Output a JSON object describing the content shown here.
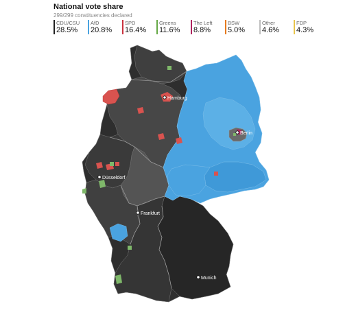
{
  "header": {
    "title": "National vote share",
    "subtitle": "299/299 constituencies declared"
  },
  "legend": [
    {
      "name": "CDU/CSU",
      "value": "28.5%",
      "color": "#1f1f1f"
    },
    {
      "name": "AfD",
      "value": "20.8%",
      "color": "#4aa3e0"
    },
    {
      "name": "SPD",
      "value": "16.4%",
      "color": "#c9313d"
    },
    {
      "name": "Greens",
      "value": "11.6%",
      "color": "#64a844"
    },
    {
      "name": "The Left",
      "value": "8.8%",
      "color": "#b0245e"
    },
    {
      "name": "BSW",
      "value": "5.0%",
      "color": "#e67a1e"
    },
    {
      "name": "Other",
      "value": "4.6%",
      "color": "#bdbdbd"
    },
    {
      "name": "FDP",
      "value": "4.3%",
      "color": "#e8c44a"
    }
  ],
  "map": {
    "cities": [
      {
        "name": "Hamburg"
      },
      {
        "name": "Berlin"
      },
      {
        "name": "Düsseldorf"
      },
      {
        "name": "Frankfurt"
      },
      {
        "name": "Munich"
      }
    ],
    "colors": {
      "cdu": "#2b2b2b",
      "cdu_mid": "#3a3a3a",
      "cdu_light": "#4d4d4d",
      "afd": "#4aa3e0",
      "spd": "#d9534f",
      "greens": "#7fb86a",
      "left": "#b0245e",
      "border": "#8a8a8a"
    }
  }
}
